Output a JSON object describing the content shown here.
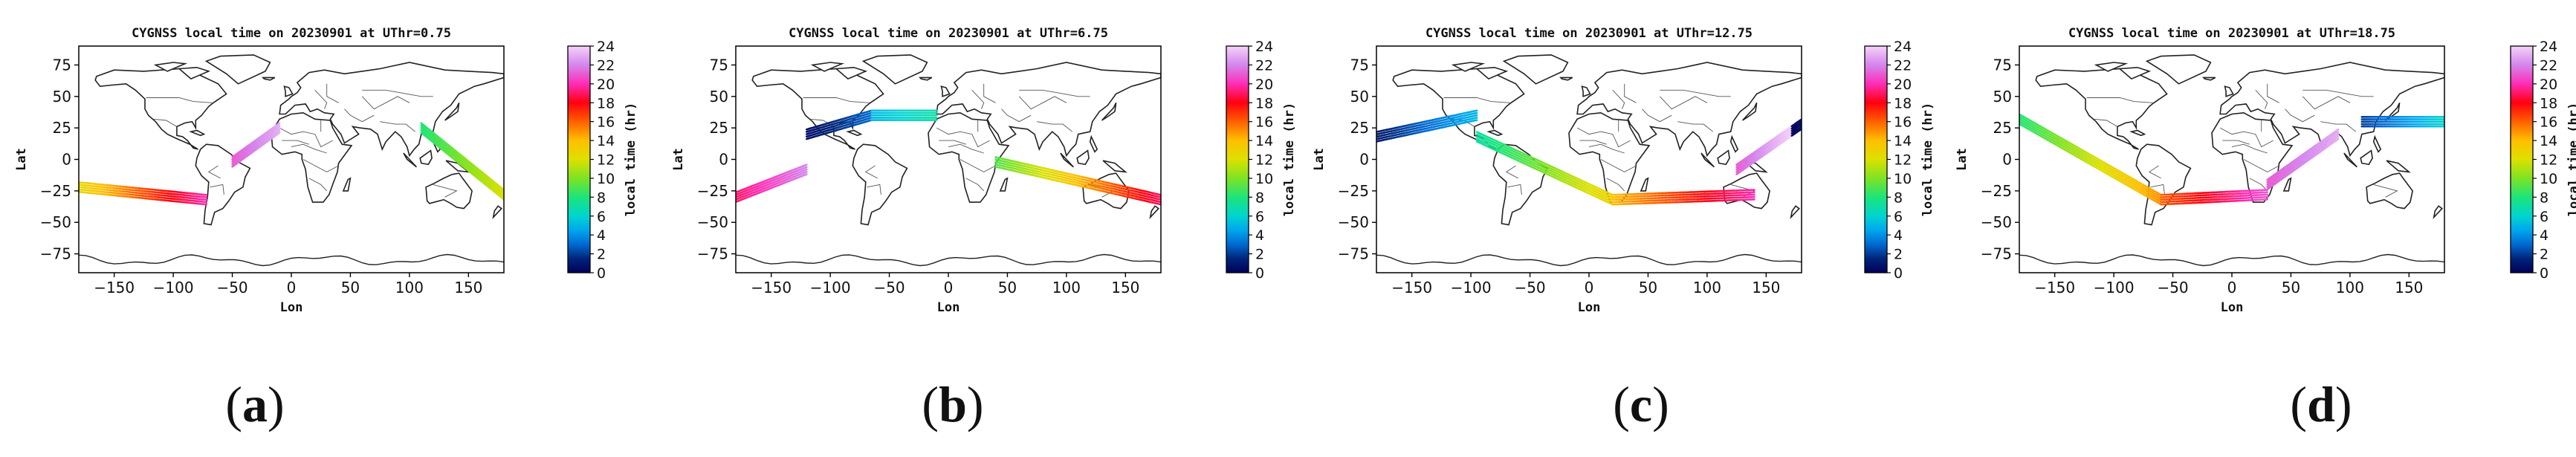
{
  "figure": {
    "panel_labels": [
      {
        "open": "(",
        "letter": "a",
        "close": ")"
      },
      {
        "open": "(",
        "letter": "b",
        "close": ")"
      },
      {
        "open": "(",
        "letter": "c",
        "close": ")"
      },
      {
        "open": "(",
        "letter": "d",
        "close": ")"
      }
    ]
  },
  "chart_data": [
    {
      "type": "scatter",
      "title": "CYGNSS local time on 20230901 at UThr=0.75",
      "xlabel": "Lon",
      "ylabel": "Lat",
      "xlim": [
        -180,
        180
      ],
      "ylim": [
        -90,
        90
      ],
      "xticks": [
        -150,
        -100,
        -50,
        0,
        50,
        100,
        150
      ],
      "yticks": [
        75,
        50,
        25,
        0,
        -25,
        -50,
        -75
      ],
      "colorbar": {
        "label": "local time (hr)",
        "ticks": [
          0,
          2,
          4,
          6,
          8,
          10,
          12,
          14,
          16,
          18,
          20,
          22,
          24
        ],
        "range": [
          0,
          24
        ]
      },
      "background": "world coastlines and country borders",
      "tracks": [
        {
          "lon": [
            -180,
            -72
          ],
          "lat_start": -22,
          "lat_end": -32,
          "lt_start": 12.5,
          "lt_end": 20
        },
        {
          "lon": [
            -50,
            -10
          ],
          "lat_start": -2,
          "lat_end": 25,
          "lt_start": 21,
          "lt_end": 23
        },
        {
          "lon": [
            110,
            180
          ],
          "lat_start": 25,
          "lat_end": -28,
          "lt_start": 8,
          "lt_end": 12
        }
      ]
    },
    {
      "type": "scatter",
      "title": "CYGNSS local time on 20230901 at UThr=6.75",
      "xlabel": "Lon",
      "ylabel": "Lat",
      "xlim": [
        -180,
        180
      ],
      "ylim": [
        -90,
        90
      ],
      "xticks": [
        -150,
        -100,
        -50,
        0,
        50,
        100,
        150
      ],
      "yticks": [
        75,
        50,
        25,
        0,
        -25,
        -50,
        -75
      ],
      "colorbar": {
        "label": "local time (hr)",
        "ticks": [
          0,
          2,
          4,
          6,
          8,
          10,
          12,
          14,
          16,
          18,
          20,
          22,
          24
        ],
        "range": [
          0,
          24
        ]
      },
      "background": "world coastlines and country borders",
      "tracks": [
        {
          "lon": [
            -180,
            -120
          ],
          "lat_start": -30,
          "lat_end": -8,
          "lt_start": 19,
          "lt_end": 22
        },
        {
          "lon": [
            -120,
            -65
          ],
          "lat_start": 20,
          "lat_end": 35,
          "lt_start": 0.5,
          "lt_end": 3
        },
        {
          "lon": [
            -65,
            -10
          ],
          "lat_start": 35,
          "lat_end": 35,
          "lt_start": 5,
          "lt_end": 7
        },
        {
          "lon": [
            40,
            180
          ],
          "lat_start": -2,
          "lat_end": -32,
          "lt_start": 9,
          "lt_end": 19
        }
      ]
    },
    {
      "type": "scatter",
      "title": "CYGNSS local time on 20230901 at UThr=12.75",
      "xlabel": "Lon",
      "ylabel": "Lat",
      "xlim": [
        -180,
        180
      ],
      "ylim": [
        -90,
        90
      ],
      "xticks": [
        -150,
        -100,
        -50,
        0,
        50,
        100,
        150
      ],
      "yticks": [
        75,
        50,
        25,
        0,
        -25,
        -50,
        -75
      ],
      "colorbar": {
        "label": "local time (hr)",
        "ticks": [
          0,
          2,
          4,
          6,
          8,
          10,
          12,
          14,
          16,
          18,
          20,
          22,
          24
        ],
        "range": [
          0,
          24
        ]
      },
      "background": "world coastlines and country borders",
      "tracks": [
        {
          "lon": [
            -180,
            -95
          ],
          "lat_start": 18,
          "lat_end": 35,
          "lt_start": 1,
          "lt_end": 5
        },
        {
          "lon": [
            -95,
            20
          ],
          "lat_start": 18,
          "lat_end": -32,
          "lt_start": 7,
          "lt_end": 13
        },
        {
          "lon": [
            20,
            140
          ],
          "lat_start": -32,
          "lat_end": -28,
          "lt_start": 14,
          "lt_end": 20
        },
        {
          "lon": [
            125,
            180
          ],
          "lat_start": -8,
          "lat_end": 28,
          "lt_start": 21,
          "lt_end": 0.5
        }
      ]
    },
    {
      "type": "scatter",
      "title": "CYGNSS local time on 20230901 at UThr=18.75",
      "xlabel": "Lon",
      "ylabel": "Lat",
      "xlim": [
        -180,
        180
      ],
      "ylim": [
        -90,
        90
      ],
      "xticks": [
        -150,
        -100,
        -50,
        0,
        50,
        100,
        150
      ],
      "yticks": [
        75,
        50,
        25,
        0,
        -25,
        -50,
        -75
      ],
      "colorbar": {
        "label": "local time (hr)",
        "ticks": [
          0,
          2,
          4,
          6,
          8,
          10,
          12,
          14,
          16,
          18,
          20,
          22,
          24
        ],
        "range": [
          0,
          24
        ]
      },
      "background": "world coastlines and country borders",
      "tracks": [
        {
          "lon": [
            -180,
            -60
          ],
          "lat_start": 32,
          "lat_end": -32,
          "lt_start": 8,
          "lt_end": 15
        },
        {
          "lon": [
            -60,
            30
          ],
          "lat_start": -32,
          "lat_end": -28,
          "lt_start": 16,
          "lt_end": 21
        },
        {
          "lon": [
            30,
            90
          ],
          "lat_start": -20,
          "lat_end": 20,
          "lt_start": 21,
          "lt_end": 23
        },
        {
          "lon": [
            110,
            180
          ],
          "lat_start": 30,
          "lat_end": 30,
          "lt_start": 2,
          "lt_end": 6
        }
      ]
    }
  ]
}
